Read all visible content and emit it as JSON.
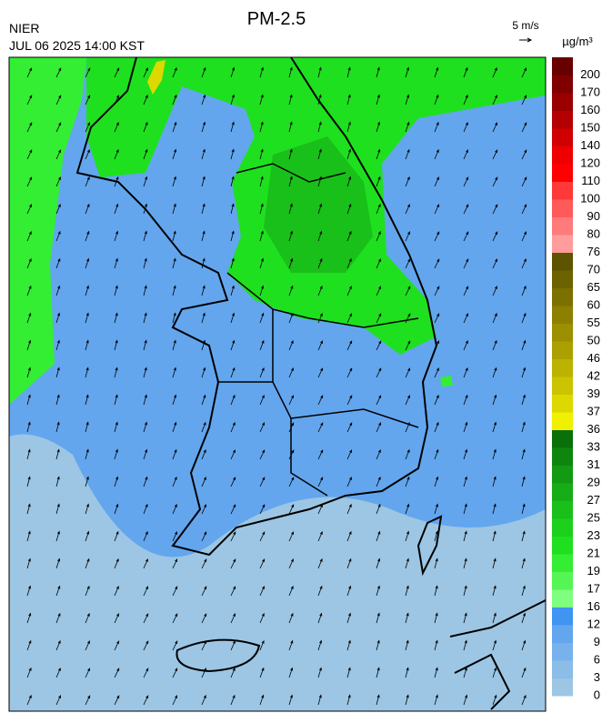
{
  "header": {
    "agency": "NIER",
    "datetime": "JUL 06 2025 14:00 KST",
    "title": "PM-2.5"
  },
  "wind_legend": {
    "label": "5 m/s"
  },
  "colorbar": {
    "unit": "µg/m³",
    "levels": [
      0,
      3,
      6,
      9,
      12,
      16,
      17,
      19,
      21,
      23,
      25,
      27,
      29,
      31,
      33,
      36,
      37,
      39,
      42,
      46,
      50,
      55,
      60,
      65,
      70,
      76,
      80,
      90,
      100,
      110,
      120,
      140,
      150,
      160,
      170,
      200
    ],
    "colors": [
      "#9cc6e4",
      "#8bbde8",
      "#78b2ec",
      "#63a6ee",
      "#3f95f0",
      "#7fff7f",
      "#55f555",
      "#33ee33",
      "#1fe01f",
      "#1cd01c",
      "#19c019",
      "#16ad16",
      "#129a12",
      "#0e860e",
      "#0a700a",
      "#f0f000",
      "#dcd800",
      "#ccc400",
      "#bcb200",
      "#aca000",
      "#9c9000",
      "#8c8000",
      "#7c7000",
      "#6c6200",
      "#5c5400",
      "#ff9c9c",
      "#ff7a7a",
      "#ff5a5a",
      "#ff3838",
      "#ff0000",
      "#ee0000",
      "#d00000",
      "#b40000",
      "#9a0000",
      "#800000",
      "#680000"
    ]
  }
}
